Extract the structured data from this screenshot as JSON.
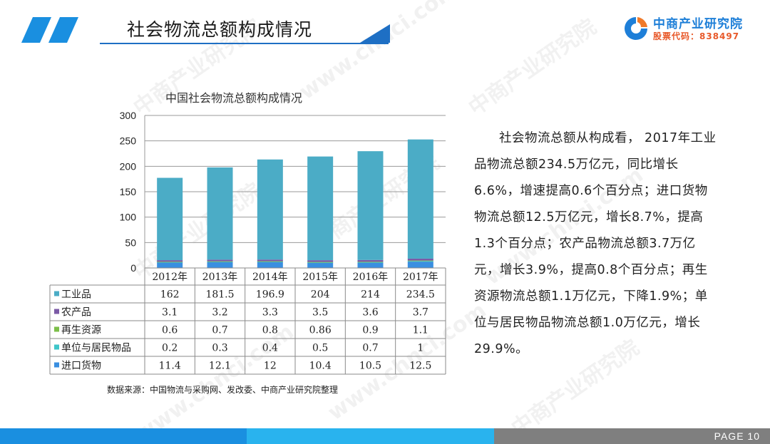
{
  "header": {
    "title": "社会物流总额构成情况",
    "logo_name": "中商产业研究院",
    "logo_code": "股票代码：838497"
  },
  "watermark": {
    "text1": "中商产业研究院",
    "text2": "www.chnci.com"
  },
  "chart_data": {
    "type": "bar",
    "stacked": true,
    "title": "中国社会物流总额构成情况",
    "categories": [
      "2012年",
      "2013年",
      "2014年",
      "2015年",
      "2016年",
      "2017年"
    ],
    "ylim": [
      0,
      300
    ],
    "yticks": [
      0,
      50,
      100,
      150,
      200,
      250,
      300
    ],
    "grid": true,
    "legend": "table-left",
    "series": [
      {
        "name": "进口货物",
        "values": [
          11.4,
          12.1,
          12,
          10.4,
          10.5,
          12.5
        ],
        "labels": [
          "11.4",
          "12.1",
          "12",
          "10.4",
          "10.5",
          "12.5"
        ],
        "color": "#3a8fe0"
      },
      {
        "name": "单位与居民物品",
        "values": [
          0.2,
          0.3,
          0.4,
          0.5,
          0.7,
          1
        ],
        "labels": [
          "0.2",
          "0.3",
          "0.4",
          "0.5",
          "0.7",
          "1"
        ],
        "color": "#3ec6c9"
      },
      {
        "name": "再生资源",
        "values": [
          0.6,
          0.7,
          0.8,
          0.86,
          0.9,
          1.1
        ],
        "labels": [
          "0.6",
          "0.7",
          "0.8",
          "0.86",
          "0.9",
          "1.1"
        ],
        "color": "#7cbf4a"
      },
      {
        "name": "农产品",
        "values": [
          3.1,
          3.2,
          3.3,
          3.5,
          3.6,
          3.7
        ],
        "labels": [
          "3.1",
          "3.2",
          "3.3",
          "3.5",
          "3.6",
          "3.7"
        ],
        "color": "#7b5aa6"
      },
      {
        "name": "工业品",
        "values": [
          162,
          181.5,
          196.9,
          204,
          214,
          234.5
        ],
        "labels": [
          "162",
          "181.5",
          "196.9",
          "204",
          "214",
          "234.5"
        ],
        "color": "#4bacc6"
      }
    ],
    "table_order": [
      "工业品",
      "农产品",
      "再生资源",
      "单位与居民物品",
      "进口货物"
    ]
  },
  "paragraph": "社会物流总额从构成看， 2017年工业品物流总额234.5万亿元，同比增长6.6%，增速提高0.6个百分点；进口货物物流总额12.5万亿元，增长8.7%，提高1.3个百分点；农产品物流总额3.7万亿元，增长3.9%，提高0.8个百分点；再生资源物流总额1.1万亿元，下降1.9%；单位与居民物品物流总额1.0万亿元，增长29.9%。",
  "source": "数据来源：中国物流与采购网、发改委、中商产业研究院整理",
  "footer": {
    "page": "PAGE  10",
    "colors": [
      "#1a8fe0",
      "#29b3ee",
      "#7f7f7f"
    ]
  }
}
